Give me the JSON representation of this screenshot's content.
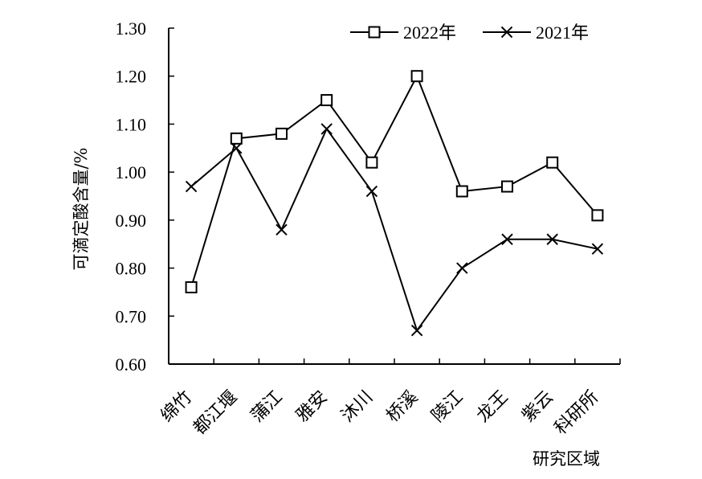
{
  "chart_data": {
    "type": "line",
    "title": "",
    "xlabel": "研究区域",
    "ylabel": "可滴定酸含量/%",
    "ylim": [
      0.6,
      1.3
    ],
    "yticks": [
      "0.60",
      "0.70",
      "0.80",
      "0.90",
      "1.00",
      "1.10",
      "1.20",
      "1.30"
    ],
    "categories": [
      "绵竹",
      "都江堰",
      "蒲江",
      "雅安",
      "沐川",
      "桥溪",
      "陵江",
      "龙王",
      "紫云",
      "科研所"
    ],
    "series": [
      {
        "name": "2022年",
        "marker": "square",
        "values": [
          0.76,
          1.07,
          1.08,
          1.15,
          1.02,
          1.2,
          0.96,
          0.97,
          1.02,
          0.91
        ]
      },
      {
        "name": "2021年",
        "marker": "x",
        "values": [
          0.97,
          1.05,
          0.88,
          1.09,
          0.96,
          0.67,
          0.8,
          0.86,
          0.86,
          0.84
        ]
      }
    ],
    "legend_position": "top-right",
    "grid": false,
    "colors": {
      "line": "#000000"
    }
  }
}
